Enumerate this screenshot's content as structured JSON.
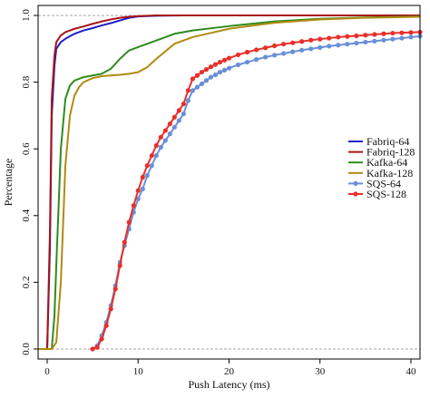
{
  "chart_data": {
    "type": "line",
    "title": "",
    "xlabel": "Push Latency (ms)",
    "ylabel": "Percentage",
    "xlim": [
      -1,
      41
    ],
    "ylim": [
      -0.03,
      1.03
    ],
    "xticks": [
      0,
      10,
      20,
      30,
      40
    ],
    "yticks": [
      0.0,
      0.2,
      0.4,
      0.6,
      0.8,
      1.0
    ],
    "xtick_labels": [
      "0",
      "10",
      "20",
      "30",
      "40"
    ],
    "ytick_labels": [
      "0.0",
      "0.2",
      "0.4",
      "0.6",
      "0.8",
      "1.0"
    ],
    "reference_lines_y": [
      0.0,
      1.0
    ],
    "grid": false,
    "legend_position": "right",
    "series": [
      {
        "name": "Fabriq-64",
        "color": "#1f1fc8",
        "marker": false,
        "x": [
          -1,
          0.0,
          0.3,
          0.5,
          0.8,
          1.0,
          1.5,
          2,
          3,
          4,
          5,
          6,
          7,
          8,
          9,
          10,
          11,
          12,
          15,
          20,
          30,
          41
        ],
        "y": [
          0.0,
          0.0,
          0.3,
          0.7,
          0.85,
          0.9,
          0.92,
          0.93,
          0.945,
          0.955,
          0.962,
          0.97,
          0.977,
          0.985,
          0.993,
          0.997,
          0.998,
          0.999,
          1.0,
          1.0,
          1.0,
          1.0
        ]
      },
      {
        "name": "Fabriq-128",
        "color": "#a81418",
        "marker": false,
        "x": [
          -1,
          0.0,
          0.3,
          0.5,
          0.8,
          1.0,
          1.5,
          2,
          3,
          4,
          5,
          6,
          7,
          8,
          9,
          10,
          11,
          12,
          15,
          20,
          30,
          41
        ],
        "y": [
          0.0,
          0.0,
          0.35,
          0.75,
          0.88,
          0.92,
          0.94,
          0.95,
          0.96,
          0.967,
          0.975,
          0.982,
          0.988,
          0.993,
          0.996,
          0.998,
          0.999,
          1.0,
          1.0,
          1.0,
          1.0,
          1.0
        ]
      },
      {
        "name": "Kafka-64",
        "color": "#2e8b1e",
        "marker": false,
        "x": [
          -1,
          0.5,
          0.8,
          1.0,
          1.5,
          2,
          2.5,
          3,
          4,
          5,
          6,
          7,
          8,
          9,
          10,
          12,
          14,
          16,
          20,
          25,
          30,
          35,
          41
        ],
        "y": [
          0.0,
          0.0,
          0.1,
          0.25,
          0.6,
          0.75,
          0.79,
          0.805,
          0.815,
          0.82,
          0.825,
          0.84,
          0.87,
          0.895,
          0.905,
          0.925,
          0.945,
          0.955,
          0.968,
          0.982,
          0.99,
          0.994,
          0.997
        ]
      },
      {
        "name": "Kafka-128",
        "color": "#b08a12",
        "marker": false,
        "x": [
          -1,
          0.5,
          1.0,
          1.5,
          2,
          2.5,
          3,
          3.5,
          4,
          5,
          6,
          7,
          8,
          9,
          10,
          11,
          12,
          14,
          16,
          20,
          25,
          30,
          35,
          41
        ],
        "y": [
          0.0,
          0.0,
          0.02,
          0.2,
          0.55,
          0.7,
          0.76,
          0.785,
          0.8,
          0.812,
          0.818,
          0.82,
          0.822,
          0.825,
          0.83,
          0.845,
          0.87,
          0.915,
          0.935,
          0.96,
          0.978,
          0.988,
          0.993,
          0.996
        ]
      },
      {
        "name": "SQS-64",
        "color": "#6a8fd8",
        "marker": true,
        "x": [
          5,
          5.5,
          6,
          6.5,
          7,
          7.5,
          8,
          8.5,
          9,
          9.5,
          10,
          10.5,
          11,
          11.5,
          12,
          12.5,
          13,
          13.5,
          14,
          14.5,
          15,
          15.5,
          16,
          16.5,
          17,
          17.5,
          18,
          18.5,
          19,
          19.5,
          20,
          21,
          22,
          23,
          24,
          25,
          26,
          27,
          28,
          29,
          30,
          31,
          32,
          33,
          34,
          35,
          36,
          37,
          38,
          39,
          40,
          41
        ],
        "y": [
          0.0,
          0.01,
          0.04,
          0.08,
          0.13,
          0.19,
          0.26,
          0.31,
          0.36,
          0.41,
          0.45,
          0.48,
          0.52,
          0.55,
          0.58,
          0.605,
          0.625,
          0.645,
          0.665,
          0.685,
          0.705,
          0.745,
          0.775,
          0.785,
          0.795,
          0.805,
          0.815,
          0.822,
          0.83,
          0.836,
          0.842,
          0.852,
          0.86,
          0.868,
          0.875,
          0.881,
          0.886,
          0.891,
          0.896,
          0.9,
          0.904,
          0.908,
          0.911,
          0.914,
          0.917,
          0.92,
          0.923,
          0.926,
          0.929,
          0.932,
          0.935,
          0.938
        ]
      },
      {
        "name": "SQS-128",
        "color": "#e8302a",
        "marker": true,
        "x": [
          5,
          5.5,
          6,
          6.5,
          7,
          7.5,
          8,
          8.5,
          9,
          9.5,
          10,
          10.5,
          11,
          11.5,
          12,
          12.5,
          13,
          13.5,
          14,
          14.5,
          15,
          15.5,
          16,
          16.5,
          17,
          17.5,
          18,
          18.5,
          19,
          19.5,
          20,
          21,
          22,
          23,
          24,
          25,
          26,
          27,
          28,
          29,
          30,
          31,
          32,
          33,
          34,
          35,
          36,
          37,
          38,
          39,
          40,
          41
        ],
        "y": [
          0.0,
          0.005,
          0.03,
          0.07,
          0.12,
          0.18,
          0.25,
          0.32,
          0.38,
          0.43,
          0.475,
          0.515,
          0.55,
          0.58,
          0.61,
          0.635,
          0.655,
          0.675,
          0.695,
          0.715,
          0.735,
          0.775,
          0.81,
          0.82,
          0.83,
          0.838,
          0.846,
          0.853,
          0.86,
          0.866,
          0.872,
          0.882,
          0.89,
          0.897,
          0.903,
          0.909,
          0.914,
          0.918,
          0.922,
          0.926,
          0.929,
          0.932,
          0.935,
          0.937,
          0.939,
          0.941,
          0.943,
          0.945,
          0.947,
          0.948,
          0.949,
          0.95
        ]
      }
    ]
  }
}
